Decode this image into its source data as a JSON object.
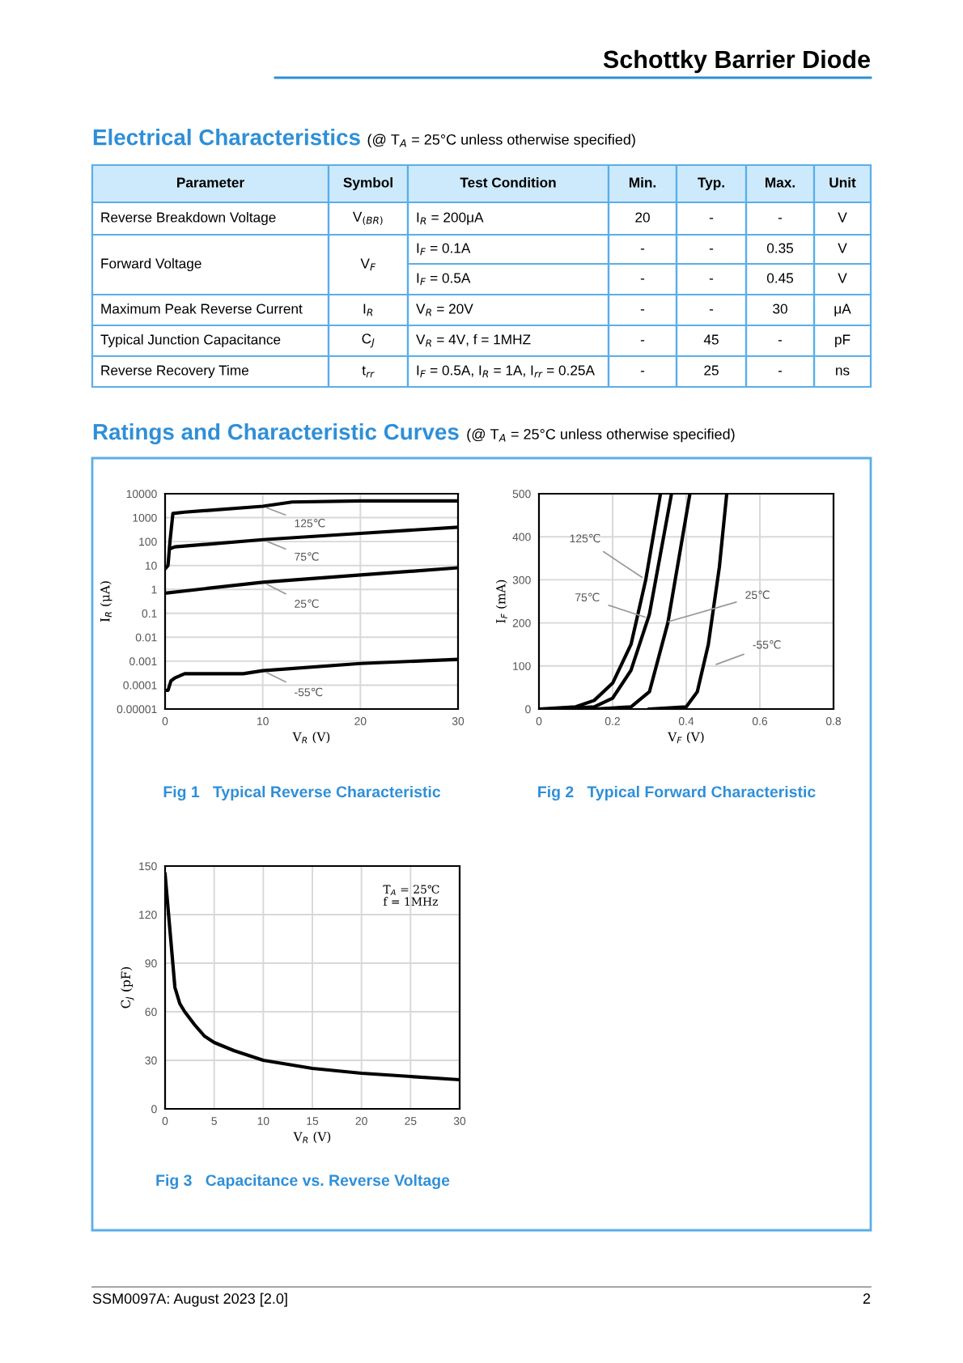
{
  "chart_data": [
    {
      "type": "other",
      "title": "Schottky Barrier Diode"
    },
    {
      "type": "other",
      "title": "Electrical Characteristics",
      "subtitle": "(@ T$_{A}$ = 25°C unless otherwise specified)",
      "annotations": [
        "Parameter",
        "Symbol",
        "Test Condition",
        "Min.",
        "Typ.",
        "Max.",
        "Unit",
        "Reverse Breakdown Voltage",
        "V$_{(BR)}$",
        "I$_{R}$ = 200μA",
        "20",
        "-",
        "-",
        "V",
        "Forward Voltage",
        "V$_{F}$",
        "I$_{F}$ = 0.1A",
        "-",
        "-",
        "0.35",
        "V",
        null,
        null,
        "I$_{F}$ = 0.5A",
        "-",
        "-",
        "0.45",
        "V",
        "Maximum Peak Reverse Current",
        "I$_{R}$",
        "V$_{R}$ = 20V",
        "-",
        "-",
        "30",
        "μA",
        "Typical Junction Capacitance",
        "C$_{J}$",
        "V$_{R}$ = 4V, f = 1MHZ",
        "-",
        "45",
        "-",
        "pF",
        "Reverse Recovery Time",
        "t$_{rr}$",
        "I$_{F}$ = 0.5A, I$_{R}$ = 1A, I$_{rr}$ = 0.25A",
        "-",
        "25",
        "-",
        "ns"
      ]
    },
    {
      "type": "other",
      "title": "Ratings and Characteristic Curves",
      "subtitle": "(@ T$_{A}$ = 25°C unless otherwise specified)"
    },
    {
      "type": "line",
      "title": "Fig 1   Typical Reverse Characteristic",
      "xlabel": "V$_{R}$ (V)",
      "ylabel": "I$_{R}$ (μA)",
      "log": "y",
      "xlim": [
        0,
        30
      ],
      "xticks": [
        0,
        10,
        20,
        30
      ],
      "ylim": [
        1e-05,
        10000
      ],
      "yticks": [
        10000,
        1000,
        100,
        10,
        1,
        0.1,
        0.01,
        0.001,
        0.0001,
        {
          "value": 1e-05,
          "label": "0.00001"
        }
      ],
      "grid": true,
      "series": [
        {
          "color": "#000000",
          "x": [
            0.1,
            0.3,
            0.5,
            0.8,
            2,
            10,
            13,
            20,
            30
          ],
          "values": [
            8,
            10,
            100,
            1500,
            1700,
            3000,
            4500,
            5000,
            5000
          ]
        },
        {
          "color": "#000000",
          "x": [
            0.5,
            1,
            10,
            20,
            30
          ],
          "values": [
            50,
            60,
            120,
            220,
            400
          ]
        },
        {
          "color": "#000000",
          "x": [
            0,
            10,
            20,
            30
          ],
          "values": [
            0.7,
            2,
            4,
            8
          ]
        },
        {
          "color": "#000000",
          "x": [
            0,
            0.3,
            0.6,
            1,
            2,
            8,
            10,
            20,
            30
          ],
          "values": [
            6e-05,
            6e-05,
            0.00015,
            0.0002,
            0.0003,
            0.0003,
            0.0004,
            0.0008,
            0.0012
          ]
        }
      ],
      "annotations": [
        {
          "text": "125℃",
          "x": 10,
          "y": 3000
        },
        {
          "text": "75℃",
          "x": 10,
          "y": 120
        },
        {
          "text": "25℃",
          "x": 10,
          "y": 2
        },
        {
          "text": "-55℃",
          "x": 10,
          "y": 0.0004
        }
      ]
    },
    {
      "type": "line",
      "title": "Fig 2   Typical Forward Characteristic",
      "xlabel": "V$_{F}$ (V)",
      "ylabel": "I$_{F}$ (mA)",
      "xlim": [
        0,
        0.8
      ],
      "xticks": [
        0,
        0.2,
        0.4,
        0.6,
        0.8
      ],
      "ylim": [
        0,
        500
      ],
      "yticks": [
        0,
        100,
        200,
        300,
        400,
        500
      ],
      "grid": true,
      "series": [
        {
          "color": "#000000",
          "x": [
            0,
            0.1,
            0.15,
            0.2,
            0.25,
            0.29,
            0.33
          ],
          "values": [
            0,
            5,
            20,
            60,
            150,
            300,
            500
          ]
        },
        {
          "color": "#000000",
          "x": [
            0.05,
            0.15,
            0.2,
            0.25,
            0.3,
            0.36
          ],
          "values": [
            0,
            5,
            25,
            90,
            220,
            500
          ]
        },
        {
          "color": "#000000",
          "x": [
            0.15,
            0.25,
            0.3,
            0.35,
            0.38,
            0.41
          ],
          "values": [
            0,
            5,
            40,
            200,
            350,
            500
          ]
        },
        {
          "color": "#000000",
          "x": [
            0.3,
            0.4,
            0.43,
            0.46,
            0.49,
            0.51
          ],
          "values": [
            0,
            5,
            40,
            150,
            330,
            500
          ]
        }
      ],
      "annotations": [
        {
          "text": "125℃",
          "x": 0.29,
          "y": 300
        },
        {
          "text": "75℃",
          "x": 0.3,
          "y": 210
        },
        {
          "text": "25℃",
          "x": 0.34,
          "y": 200
        },
        {
          "text": "-55℃",
          "x": 0.47,
          "y": 100
        }
      ]
    },
    {
      "type": "line",
      "title": "Fig 3   Capacitance vs. Reverse Voltage",
      "xlabel": "V$_{R}$ (V)",
      "ylabel": "C$_{J}$ (pF)",
      "xlim": [
        0,
        30
      ],
      "xticks": [
        0,
        5,
        10,
        15,
        20,
        25,
        30
      ],
      "ylim": [
        0,
        150
      ],
      "yticks": [
        0,
        30,
        60,
        90,
        120,
        150
      ],
      "grid": true,
      "series": [
        {
          "color": "#000000",
          "x": [
            0,
            0.5,
            1,
            1.5,
            2,
            3,
            4,
            5,
            7,
            10,
            12,
            15,
            20,
            25,
            30
          ],
          "values": [
            145,
            110,
            75,
            65,
            60,
            52,
            45,
            41,
            36,
            30,
            28,
            25,
            22,
            20,
            18
          ]
        }
      ],
      "annotations": [
        "T$_{A}$ = 25℃",
        "f = 1MHz"
      ]
    },
    {
      "type": "other",
      "annotations": [
        "SSM0097A: August 2023 [2.0]",
        "2"
      ]
    }
  ]
}
